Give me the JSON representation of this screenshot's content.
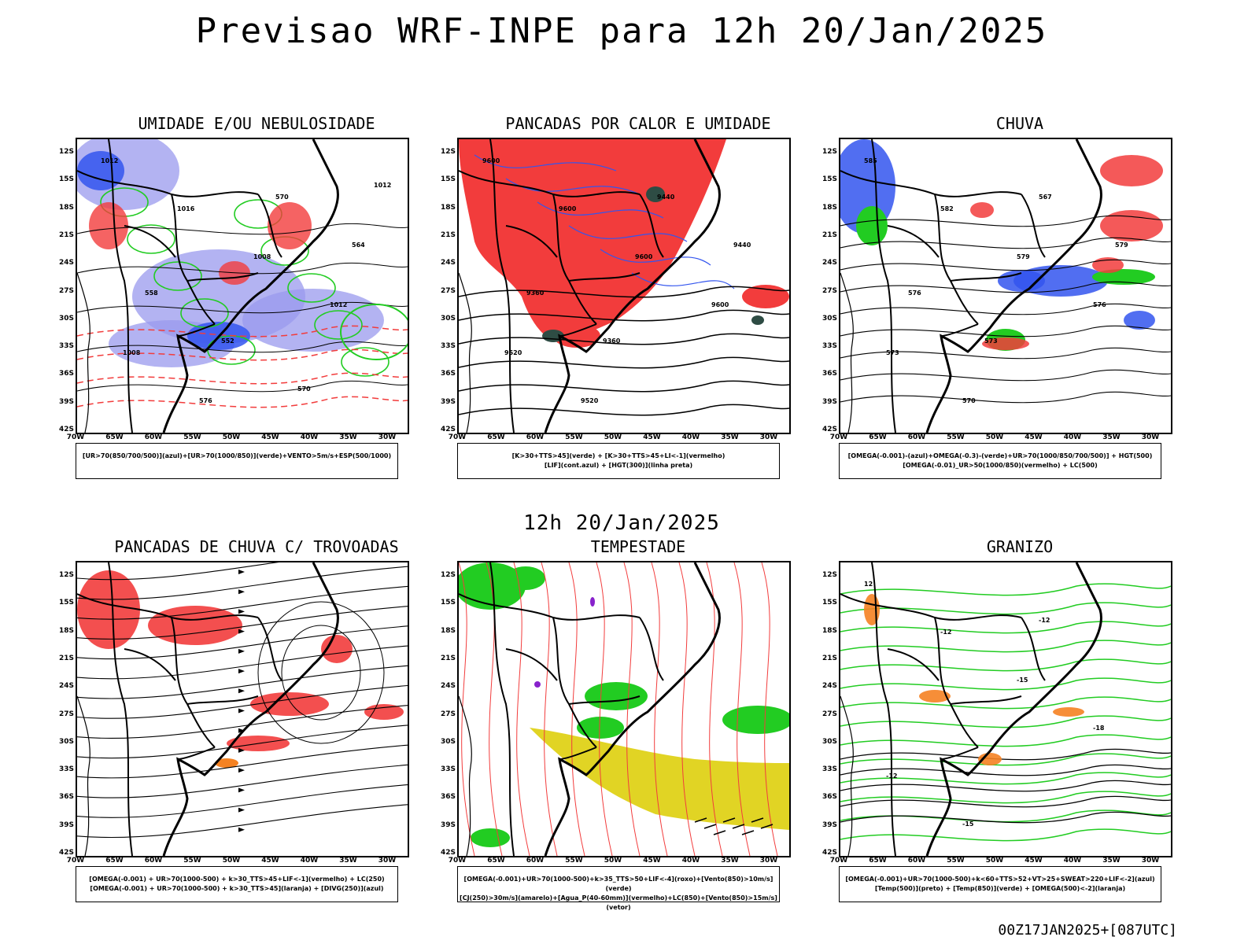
{
  "title": "Previsao WRF-INPE  para 12h 20/Jan/2025",
  "subtitle": "12h 20/Jan/2025",
  "footer": "00Z17JAN2025+[087UTC]",
  "axes": {
    "lat_labels": [
      "12S",
      "15S",
      "18S",
      "21S",
      "24S",
      "27S",
      "30S",
      "33S",
      "36S",
      "39S",
      "42S"
    ],
    "lon_labels": [
      "70W",
      "65W",
      "60W",
      "55W",
      "50W",
      "45W",
      "40W",
      "35W",
      "30W"
    ]
  },
  "colors": {
    "red": "#f23c3c",
    "green": "#22cc22",
    "blue": "#3355ee",
    "lavender": "#9999ee",
    "yellow": "#e1d424",
    "orange": "#f58222",
    "darkgreen": "#2e4c44"
  },
  "panels": [
    {
      "title": "UMIDADE E/OU NEBULOSIDADE",
      "legend": [
        "[UR>70(850/700/500)](azul)+[UR>70(1000/850)](verde)+VENTO>5m/s+ESP(500/1000)"
      ],
      "contour_labels": [
        "1012",
        "1016",
        "1008",
        "1012",
        "1008",
        "576",
        "570",
        "564",
        "558",
        "552",
        "570",
        "1012"
      ]
    },
    {
      "title": "PANCADAS POR CALOR E UMIDADE",
      "legend": [
        "[K>30+TTS>45](verde) + [K>30+TTS>45+LI<-1](vermelho)",
        "[LIF](cont.azul) + [HGT(300)](linha preta)"
      ],
      "contour_labels": [
        "9600",
        "9600",
        "9600",
        "9600",
        "9520",
        "9520",
        "9440",
        "9440",
        "9360",
        "9360"
      ]
    },
    {
      "title": "CHUVA",
      "legend": [
        "[OMEGA(-0.001)-(azul)+OMEGA(-0.3)-(verde)+UR>70(1000/850/700/500)] + HGT(500)",
        "[OMEGA(-0.01)_UR>50(1000/850)(vermelho) + LC(500)"
      ],
      "contour_labels": [
        "585",
        "582",
        "579",
        "576",
        "573",
        "570",
        "567",
        "579",
        "576",
        "573"
      ]
    },
    {
      "title": "PANCADAS DE CHUVA C/ TROVOADAS",
      "legend": [
        "[OMEGA(-0.001) + UR>70(1000-500) + k>30_TTS>45+LIF<-1](vermelho) + LC(250)",
        "[OMEGA(-0.001) + UR>70(1000-500) + k>30_TTS>45](laranja) + [DIVG(250)](azul)"
      ],
      "contour_labels": []
    },
    {
      "title": "TEMPESTADE",
      "legend": [
        "[OMEGA(-0.001)+UR>70(1000-500)+k>35_TTS>50+LIF<-4](roxo)+[Vento(850)>10m/s](verde)",
        "[CJ(250)>30m/s](amarelo)+[Agua_P(40-60mm)](vermelho)+LC(850)+[Vento(850)>15m/s](vetor)"
      ],
      "contour_labels": []
    },
    {
      "title": "GRANIZO",
      "legend": [
        "[OMEGA(-0.001)+UR>70(1000-500)+k<60+TTS>52+VT>25+SWEAT>220+LIF<-2](azul)",
        "[Temp(500)](preto) + [Temp(850)](verde) + [OMEGA(500)<-2](laranja)"
      ],
      "contour_labels": [
        "12",
        "-12",
        "-15",
        "-18",
        "-12",
        "-15",
        "-12"
      ]
    }
  ]
}
